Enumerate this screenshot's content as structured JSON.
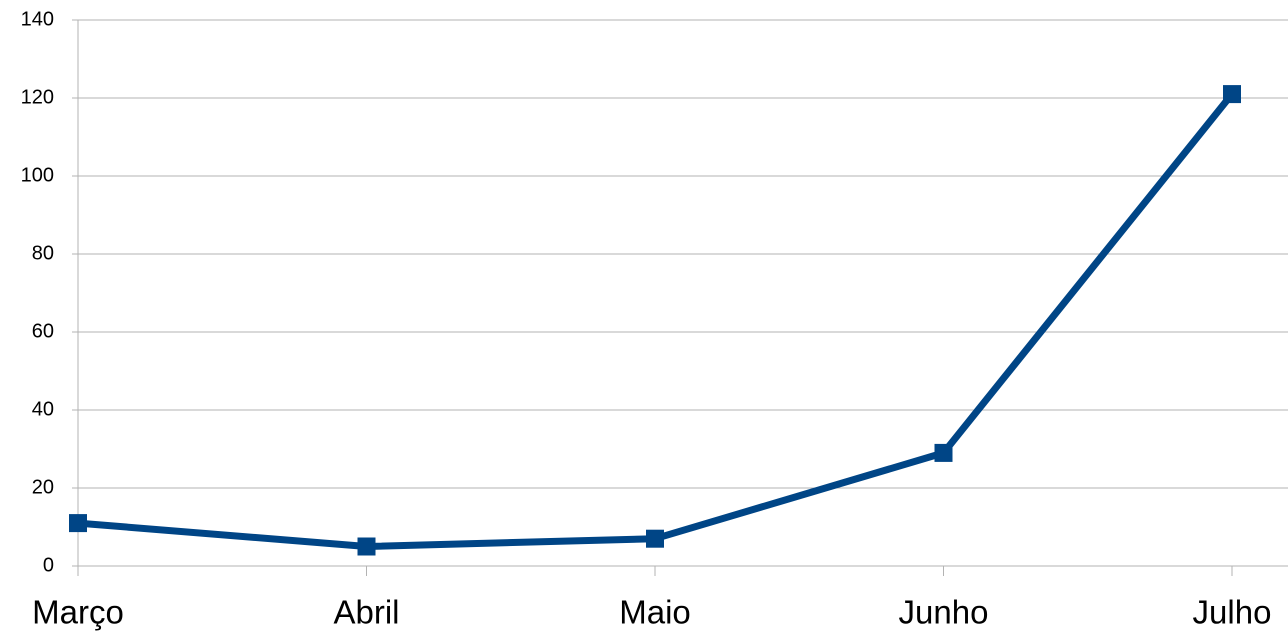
{
  "chart_data": {
    "type": "line",
    "categories": [
      "Março",
      "Abril",
      "Maio",
      "Junho",
      "Julho"
    ],
    "series": [
      {
        "name": null,
        "color": "#004586",
        "values": [
          11,
          5,
          7,
          29,
          121
        ]
      }
    ],
    "ylim": [
      0,
      140
    ],
    "yticks": [
      0,
      20,
      40,
      60,
      80,
      100,
      120,
      140
    ],
    "grid": true
  }
}
